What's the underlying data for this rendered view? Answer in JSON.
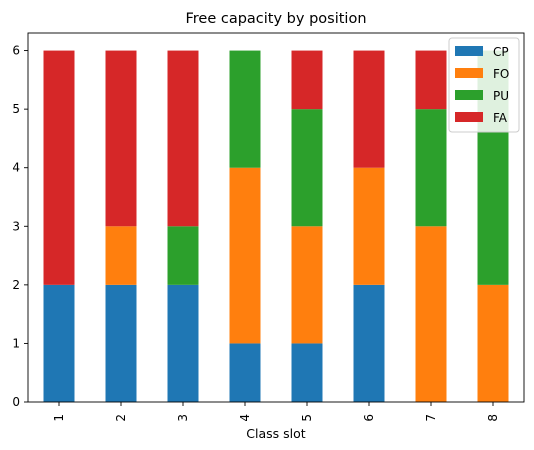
{
  "chart_data": {
    "type": "bar",
    "stacked": true,
    "title": "Free capacity by position",
    "xlabel": "Class slot",
    "ylabel": "",
    "categories": [
      "1",
      "2",
      "3",
      "4",
      "5",
      "6",
      "7",
      "8"
    ],
    "ylim": [
      0,
      6.3
    ],
    "yticks": [
      0,
      1,
      2,
      3,
      4,
      5,
      6
    ],
    "series": [
      {
        "name": "CP",
        "color": "#1f77b4",
        "values": [
          2,
          2,
          2,
          1,
          1,
          2,
          0,
          0
        ]
      },
      {
        "name": "FO",
        "color": "#ff7f0e",
        "values": [
          0,
          1,
          0,
          3,
          2,
          2,
          3,
          2
        ]
      },
      {
        "name": "PU",
        "color": "#2ca02c",
        "values": [
          0,
          0,
          1,
          2,
          2,
          0,
          2,
          4
        ]
      },
      {
        "name": "FA",
        "color": "#d62728",
        "values": [
          4,
          3,
          3,
          0,
          1,
          2,
          1,
          0
        ]
      }
    ],
    "legend": {
      "position": "top-right"
    },
    "grid": false
  }
}
